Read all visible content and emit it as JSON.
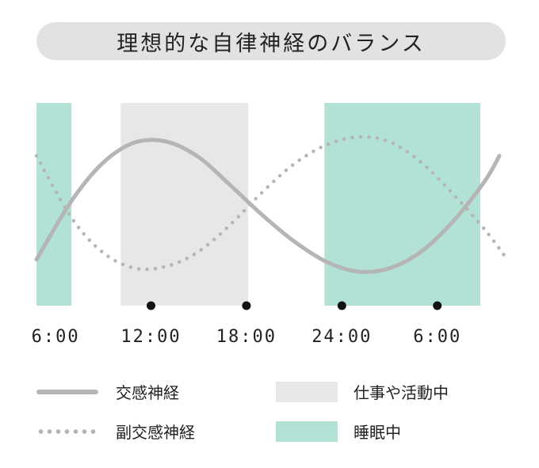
{
  "title": "理想的な自律神経のバランス",
  "chart_data": {
    "type": "line",
    "x_unit": "hours",
    "xlim": [
      4.3,
      34.4
    ],
    "ylim": [
      -1.15,
      1.15
    ],
    "x_ticks": [
      {
        "x": 6,
        "label": "6:00",
        "marker": false
      },
      {
        "x": 12,
        "label": "12:00",
        "marker": true
      },
      {
        "x": 18,
        "label": "18:00",
        "marker": true
      },
      {
        "x": 24,
        "label": "24:00",
        "marker": true
      },
      {
        "x": 30,
        "label": "6:00",
        "marker": true
      }
    ],
    "bands": [
      {
        "name": "睡眠中",
        "start": 4.8,
        "end": 7.0
      },
      {
        "name": "仕事や活動中",
        "start": 10.1,
        "end": 18.1
      },
      {
        "name": "睡眠中",
        "start": 22.9,
        "end": 32.7
      }
    ],
    "series": [
      {
        "name": "交感神経",
        "style": "solid",
        "color": "#b5b5b5",
        "x": [
          4.8,
          7,
          9,
          11,
          13,
          15,
          17,
          19,
          21,
          23,
          25,
          27,
          29,
          31,
          33,
          33.9
        ],
        "y": [
          -0.82,
          0.05,
          0.62,
          0.92,
          0.93,
          0.7,
          0.28,
          -0.16,
          -0.55,
          -0.85,
          -1.0,
          -0.95,
          -0.7,
          -0.25,
          0.35,
          0.72
        ]
      },
      {
        "name": "副交感神経",
        "style": "dotted",
        "color": "#b5b5b5",
        "x": [
          4.8,
          7,
          9,
          11,
          13,
          15,
          17,
          19,
          21,
          23,
          25,
          27,
          29,
          31,
          33,
          34.4
        ],
        "y": [
          0.72,
          -0.2,
          -0.72,
          -0.95,
          -0.92,
          -0.7,
          -0.3,
          0.18,
          0.6,
          0.88,
          1.0,
          0.93,
          0.62,
          0.15,
          -0.38,
          -0.82
        ]
      }
    ]
  },
  "colors": {
    "sleep": "#b1e2d5",
    "work": "#e7e7e7",
    "line": "#b5b5b5",
    "marker": "#111111"
  },
  "legend": [
    {
      "label": "交感神経",
      "kind": "solid"
    },
    {
      "label": "仕事や活動中",
      "kind": "work"
    },
    {
      "label": "副交感神経",
      "kind": "dotted"
    },
    {
      "label": "睡眠中",
      "kind": "sleep"
    }
  ]
}
